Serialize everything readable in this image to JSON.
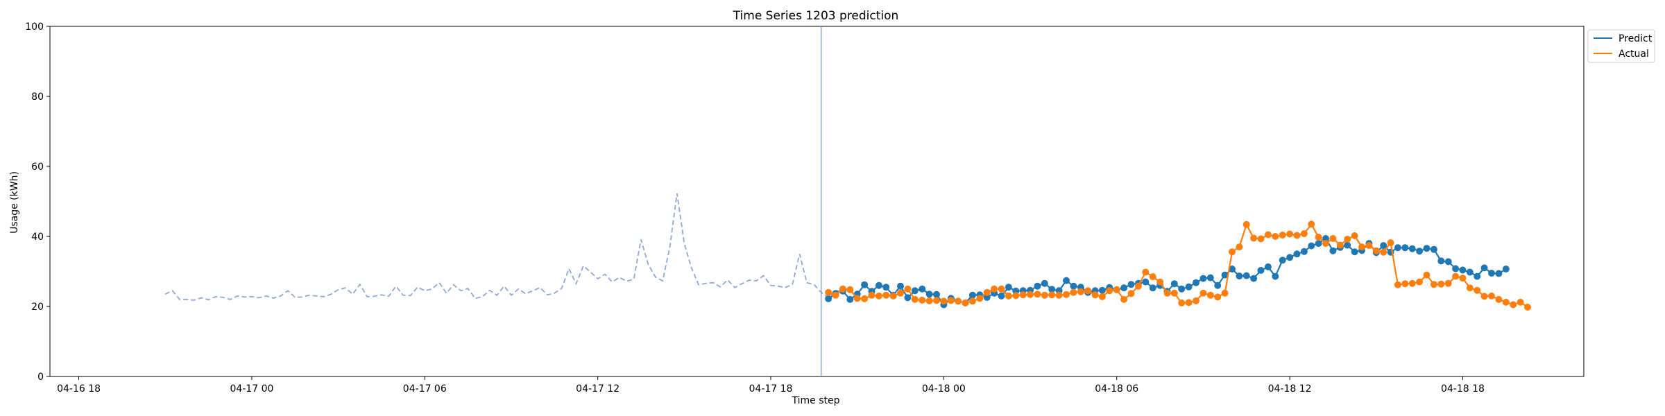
{
  "chart_data": {
    "type": "line",
    "title": "Time Series 1203 prediction",
    "xlabel": "Time step",
    "ylabel": "Usage (kWh)",
    "ylim": [
      0,
      100
    ],
    "yticks": [
      "0",
      "20",
      "40",
      "60",
      "80",
      "100"
    ],
    "xticks": [
      "04-16 18",
      "04-17 00",
      "04-17 06",
      "04-17 12",
      "04-17 18",
      "04-18 00",
      "04-18 06",
      "04-18 12",
      "04-18 18"
    ],
    "xlim": [
      "2023-04-16T17:00",
      "2023-04-18T22:12"
    ],
    "forecast_start": "2023-04-17T19:45",
    "legend_position": "top-right",
    "history": {
      "start": "2023-04-16T21:00",
      "interval_minutes": 15,
      "color": "#8fa8d0",
      "values": [
        23.5,
        24.5,
        22.0,
        22.0,
        21.8,
        22.5,
        21.9,
        22.8,
        22.6,
        22.0,
        23.0,
        22.7,
        22.8,
        22.5,
        23.0,
        22.4,
        23.0,
        24.5,
        22.6,
        22.7,
        23.2,
        23.0,
        22.8,
        23.5,
        24.8,
        25.3,
        23.5,
        26.3,
        22.8,
        22.9,
        23.3,
        22.9,
        25.8,
        23.2,
        23.1,
        25.5,
        24.5,
        25.0,
        26.8,
        23.8,
        26.2,
        24.5,
        25.1,
        22.3,
        22.8,
        24.6,
        23.2,
        25.8,
        23.2,
        25.0,
        23.6,
        24.5,
        25.4,
        23.3,
        23.8,
        25.2,
        30.8,
        26.5,
        31.6,
        29.8,
        27.9,
        29.2,
        27.0,
        28.3,
        27.2,
        27.8,
        39.1,
        32.0,
        28.4,
        27.3,
        37.0,
        52.3,
        38.0,
        31.0,
        26.2,
        26.6,
        26.8,
        25.6,
        27.6,
        25.4,
        26.5,
        27.5,
        27.3,
        28.8,
        26.0,
        25.8,
        25.4,
        26.3,
        35.0,
        26.8,
        26.3,
        24.0,
        22.5,
        24.5,
        24.3,
        25.0
      ]
    },
    "series": [
      {
        "name": "Predict",
        "color": "#1f77b4",
        "start": "2023-04-17T20:00",
        "interval_minutes": 15,
        "values": [
          22.2,
          23.7,
          24.4,
          22.0,
          23.5,
          26.2,
          24.3,
          26.0,
          25.5,
          23.2,
          25.8,
          22.5,
          24.5,
          25.0,
          23.5,
          23.4,
          20.5,
          22.3,
          21.5,
          21.0,
          23.2,
          23.3,
          22.6,
          23.8,
          23.0,
          25.5,
          24.4,
          24.5,
          24.6,
          25.8,
          26.6,
          24.9,
          24.5,
          27.4,
          25.8,
          25.5,
          24.0,
          24.5,
          24.6,
          25.4,
          24.8,
          25.3,
          26.3,
          26.6,
          27.0,
          25.3,
          26.0,
          24.3,
          26.5,
          25.0,
          25.6,
          26.8,
          28.0,
          28.2,
          26.0,
          29.0,
          30.7,
          28.7,
          28.8,
          28.0,
          30.3,
          31.3,
          28.6,
          33.2,
          34.0,
          35.0,
          35.7,
          37.3,
          38.0,
          39.4,
          35.9,
          36.9,
          37.5,
          35.6,
          36.0,
          38.0,
          35.4,
          37.4,
          35.5,
          36.8,
          36.8,
          36.5,
          35.8,
          36.6,
          36.3,
          33.0,
          32.8,
          30.8,
          30.4,
          29.8,
          28.6,
          31.0,
          29.5,
          29.4,
          30.7
        ]
      },
      {
        "name": "Actual",
        "color": "#ff7f0e",
        "start": "2023-04-17T20:00",
        "interval_minutes": 15,
        "values": [
          24.0,
          23.2,
          25.0,
          24.8,
          22.3,
          22.2,
          23.2,
          23.0,
          23.2,
          23.0,
          23.8,
          25.0,
          22.0,
          21.8,
          21.6,
          21.7,
          21.5,
          21.7,
          21.5,
          21.0,
          21.5,
          22.3,
          24.0,
          25.0,
          25.0,
          23.0,
          23.1,
          23.3,
          23.4,
          23.5,
          23.2,
          23.3,
          23.2,
          23.4,
          24.0,
          24.2,
          24.5,
          23.3,
          22.8,
          24.5,
          24.8,
          22.0,
          23.7,
          25.8,
          29.8,
          28.5,
          27.0,
          23.8,
          23.8,
          21.0,
          21.1,
          21.6,
          23.8,
          23.2,
          22.7,
          23.8,
          35.6,
          37.0,
          43.4,
          39.5,
          39.3,
          40.5,
          40.0,
          40.4,
          40.7,
          40.3,
          40.8,
          43.5,
          39.8,
          38.0,
          39.4,
          37.5,
          39.2,
          40.2,
          37.0,
          37.4,
          35.9,
          35.5,
          38.2,
          26.2,
          26.5,
          26.6,
          27.0,
          29.0,
          26.3,
          26.4,
          26.6,
          28.6,
          28.1,
          25.3,
          24.6,
          22.9,
          23.0,
          22.0,
          21.2,
          20.5,
          21.2,
          19.8
        ]
      }
    ]
  }
}
